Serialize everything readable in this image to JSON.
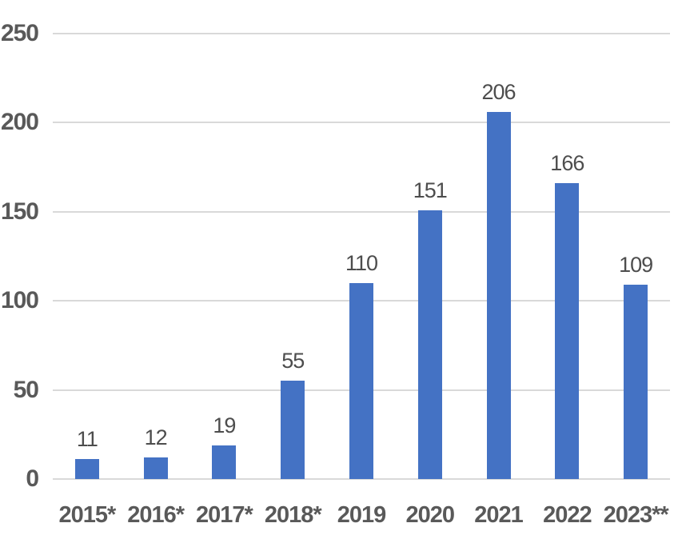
{
  "chart_data": {
    "type": "bar",
    "categories": [
      "2015*",
      "2016*",
      "2017*",
      "2018*",
      "2019",
      "2020",
      "2021",
      "2022",
      "2023**"
    ],
    "values": [
      11,
      12,
      19,
      55,
      110,
      151,
      206,
      166,
      109
    ],
    "title": "",
    "xlabel": "",
    "ylabel": "",
    "ylim": [
      0,
      250
    ],
    "yticks": [
      0,
      50,
      100,
      150,
      200,
      250
    ],
    "grid": true,
    "legend": false,
    "data_labels": true,
    "bar_color": "#4472C4",
    "gridline_color": "#d9d9d9",
    "axis_label_color": "#595959",
    "value_label_color": "#4d4d4d",
    "background_color": "#ffffff"
  }
}
